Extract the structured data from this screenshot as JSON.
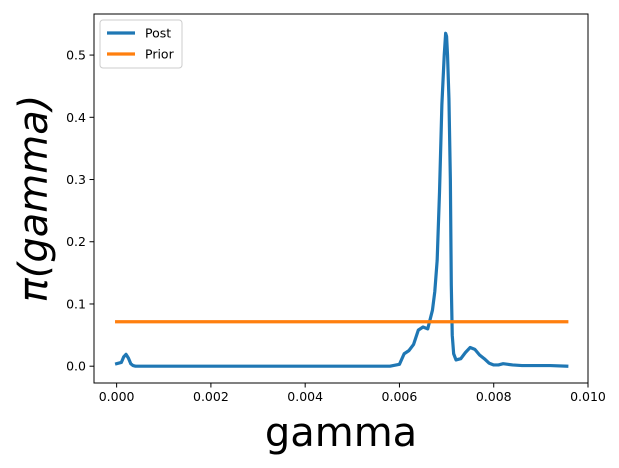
{
  "chart_data": {
    "type": "line",
    "title": "",
    "xlabel": "gamma",
    "ylabel": "π(gamma)",
    "xlim": [
      -0.00048,
      0.01
    ],
    "ylim": [
      -0.027,
      0.566
    ],
    "x_ticks": [
      0.0,
      0.002,
      0.004,
      0.006,
      0.008,
      0.01
    ],
    "x_tick_labels": [
      "0.000",
      "0.002",
      "0.004",
      "0.006",
      "0.008",
      "0.010"
    ],
    "y_ticks": [
      0.0,
      0.1,
      0.2,
      0.3,
      0.4,
      0.5
    ],
    "y_tick_labels": [
      "0.0",
      "0.1",
      "0.2",
      "0.3",
      "0.4",
      "0.5"
    ],
    "grid": false,
    "legend_position": "top-left",
    "series": [
      {
        "name": "Post",
        "color": "#1f77b4",
        "x": [
          0.0,
          0.0001,
          0.00015,
          0.0002,
          0.00025,
          0.0003,
          0.00035,
          0.0004,
          0.0005,
          0.001,
          0.002,
          0.003,
          0.004,
          0.005,
          0.0058,
          0.006,
          0.0061,
          0.0062,
          0.0063,
          0.0064,
          0.0065,
          0.0066,
          0.0067,
          0.00675,
          0.0068,
          0.00685,
          0.0069,
          0.00695,
          0.00698,
          0.007,
          0.00702,
          0.00705,
          0.00708,
          0.0071,
          0.00712,
          0.00715,
          0.0072,
          0.0073,
          0.0074,
          0.0075,
          0.0076,
          0.0077,
          0.0078,
          0.0079,
          0.008,
          0.0081,
          0.0082,
          0.0083,
          0.0084,
          0.0086,
          0.0088,
          0.009,
          0.0092,
          0.00955
        ],
        "y": [
          0.004,
          0.006,
          0.015,
          0.019,
          0.013,
          0.004,
          0.001,
          0.0,
          0.0,
          0.0,
          0.0,
          0.0,
          0.0,
          0.0,
          0.0,
          0.003,
          0.02,
          0.025,
          0.035,
          0.058,
          0.063,
          0.06,
          0.09,
          0.12,
          0.17,
          0.28,
          0.42,
          0.5,
          0.535,
          0.53,
          0.5,
          0.43,
          0.3,
          0.13,
          0.05,
          0.02,
          0.01,
          0.012,
          0.022,
          0.03,
          0.027,
          0.018,
          0.012,
          0.005,
          0.002,
          0.002,
          0.004,
          0.003,
          0.002,
          0.001,
          0.001,
          0.001,
          0.001,
          0.0
        ]
      },
      {
        "name": "Prior",
        "color": "#ff7f0e",
        "x": [
          0.0,
          0.00955
        ],
        "y": [
          0.0714,
          0.0714
        ]
      }
    ]
  }
}
